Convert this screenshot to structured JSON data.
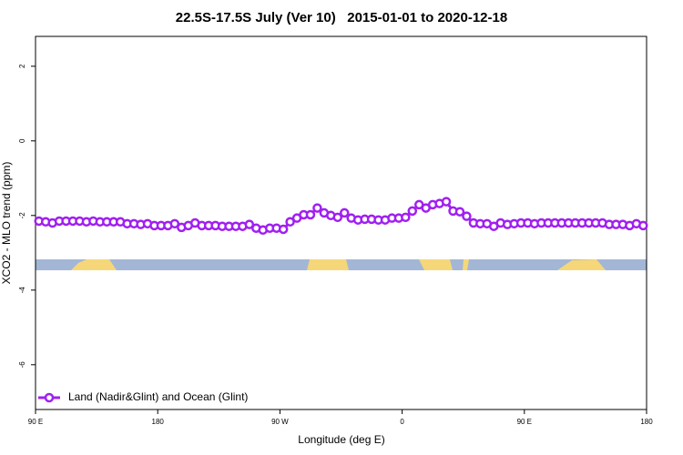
{
  "chart_data": {
    "type": "line",
    "title": "22.5S-17.5S July (Ver 10)   2015-01-01 to 2020-12-18",
    "x_label": "Longitude (deg E)",
    "y_label": "XCO2 - MLO trend (ppm)",
    "xlim": [
      90,
      540
    ],
    "xticks": [
      {
        "value": 90,
        "label": "90 E"
      },
      180,
      {
        "value": 270,
        "label": "90 W"
      },
      {
        "value": 360,
        "label": "0"
      },
      {
        "value": 450,
        "label": "90 E"
      },
      {
        "value": 540,
        "label": "180"
      }
    ],
    "ylim": [
      -7.2,
      2.8
    ],
    "yticks": [
      2,
      0,
      -2,
      -4,
      -6
    ],
    "legend": "bottom-left",
    "x": [
      92.5,
      97.5,
      102.5,
      107.5,
      112.5,
      117.5,
      122.5,
      127.5,
      132.5,
      137.5,
      142.5,
      147.5,
      152.5,
      157.5,
      162.5,
      167.5,
      172.5,
      177.5,
      182.5,
      187.5,
      192.5,
      197.5,
      202.5,
      207.5,
      212.5,
      217.5,
      222.5,
      227.5,
      232.5,
      237.5,
      242.5,
      247.5,
      252.5,
      257.5,
      262.5,
      267.5,
      272.5,
      277.5,
      282.5,
      287.5,
      292.5,
      297.5,
      302.5,
      307.5,
      312.5,
      317.5,
      322.5,
      327.5,
      332.5,
      337.5,
      342.5,
      347.5,
      352.5,
      357.5,
      362.5,
      367.5,
      372.5,
      377.5,
      382.5,
      387.5,
      392.5,
      397.5,
      402.5,
      407.5,
      412.5,
      417.5,
      422.5,
      427.5,
      432.5,
      437.5,
      442.5,
      447.5,
      452.5,
      457.5,
      462.5,
      467.5,
      472.5,
      477.5,
      482.5,
      487.5,
      492.5,
      497.5,
      502.5,
      507.5,
      512.5,
      517.5,
      522.5,
      527.5,
      532.5,
      537.5
    ],
    "series": [
      {
        "name": "Land (Nadir&Glint) and Ocean (Glint)",
        "color": "#a020f0",
        "values": [
          -2.15,
          -2.17,
          -2.2,
          -2.15,
          -2.15,
          -2.15,
          -2.15,
          -2.17,
          -2.15,
          -2.17,
          -2.17,
          -2.17,
          -2.17,
          -2.22,
          -2.22,
          -2.24,
          -2.22,
          -2.27,
          -2.27,
          -2.27,
          -2.22,
          -2.32,
          -2.27,
          -2.2,
          -2.27,
          -2.27,
          -2.27,
          -2.29,
          -2.29,
          -2.29,
          -2.29,
          -2.24,
          -2.34,
          -2.39,
          -2.34,
          -2.34,
          -2.37,
          -2.17,
          -2.07,
          -1.98,
          -1.98,
          -1.8,
          -1.93,
          -2.0,
          -2.05,
          -1.93,
          -2.07,
          -2.12,
          -2.1,
          -2.1,
          -2.12,
          -2.12,
          -2.07,
          -2.07,
          -2.05,
          -1.88,
          -1.71,
          -1.8,
          -1.71,
          -1.68,
          -1.63,
          -1.88,
          -1.9,
          -2.02,
          -2.2,
          -2.22,
          -2.22,
          -2.29,
          -2.2,
          -2.24,
          -2.22,
          -2.2,
          -2.2,
          -2.22,
          -2.2,
          -2.2,
          -2.2,
          -2.2,
          -2.2,
          -2.2,
          -2.2,
          -2.2,
          -2.2,
          -2.2,
          -2.24,
          -2.24,
          -2.24,
          -2.27,
          -2.22,
          -2.27
        ]
      }
    ]
  }
}
